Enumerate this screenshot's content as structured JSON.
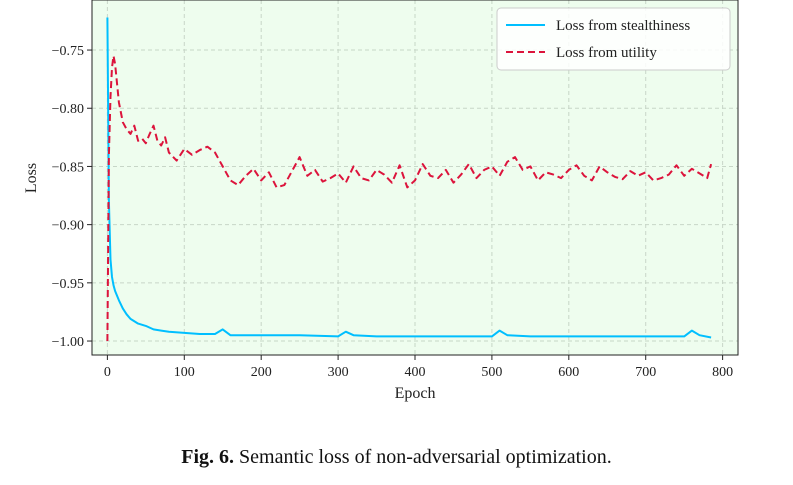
{
  "caption": {
    "label": "Fig. 6.",
    "text": "Semantic loss of non-adversarial optimization."
  },
  "colors": {
    "plot_bg": "#eefdee",
    "stealthiness": "#00bfff",
    "utility": "#dc143c",
    "grid": "#c7d6c7"
  },
  "chart_data": {
    "type": "line",
    "title": "",
    "xlabel": "Epoch",
    "ylabel": "Loss",
    "xlim": [
      -20,
      820
    ],
    "ylim": [
      -1.012,
      -0.707
    ],
    "xticks": [
      0,
      100,
      200,
      300,
      400,
      500,
      600,
      700,
      800
    ],
    "yticks": [
      -1.0,
      -0.95,
      -0.9,
      -0.85,
      -0.8,
      -0.75
    ],
    "ytick_labels": [
      "−1.00",
      "−0.95",
      "−0.90",
      "−0.85",
      "−0.80",
      "−0.75"
    ],
    "grid": true,
    "legend_position": "top-right",
    "series": [
      {
        "name": "Loss from stealthiness",
        "style": "solid",
        "x": [
          0,
          2,
          4,
          6,
          8,
          10,
          15,
          20,
          25,
          30,
          40,
          50,
          60,
          70,
          80,
          100,
          120,
          140,
          150,
          160,
          200,
          250,
          300,
          310,
          320,
          350,
          400,
          450,
          500,
          510,
          520,
          550,
          600,
          650,
          700,
          750,
          760,
          770,
          785
        ],
        "y": [
          -0.722,
          -0.88,
          -0.93,
          -0.945,
          -0.952,
          -0.957,
          -0.965,
          -0.972,
          -0.977,
          -0.981,
          -0.985,
          -0.987,
          -0.99,
          -0.991,
          -0.992,
          -0.993,
          -0.994,
          -0.994,
          -0.99,
          -0.995,
          -0.995,
          -0.995,
          -0.996,
          -0.992,
          -0.995,
          -0.996,
          -0.996,
          -0.996,
          -0.996,
          -0.991,
          -0.995,
          -0.996,
          -0.996,
          -0.996,
          -0.996,
          -0.996,
          -0.991,
          -0.995,
          -0.997
        ]
      },
      {
        "name": "Loss from utility",
        "style": "dashed",
        "x": [
          0,
          2,
          4,
          6,
          8,
          10,
          15,
          20,
          25,
          30,
          35,
          40,
          45,
          50,
          55,
          60,
          65,
          70,
          75,
          80,
          90,
          100,
          110,
          120,
          130,
          140,
          150,
          160,
          170,
          180,
          190,
          200,
          210,
          220,
          230,
          240,
          250,
          260,
          270,
          280,
          290,
          300,
          310,
          320,
          330,
          340,
          350,
          360,
          370,
          380,
          390,
          400,
          410,
          420,
          430,
          440,
          450,
          460,
          470,
          480,
          490,
          500,
          510,
          520,
          530,
          540,
          550,
          560,
          570,
          580,
          590,
          600,
          610,
          620,
          630,
          640,
          650,
          660,
          670,
          680,
          690,
          700,
          710,
          720,
          730,
          740,
          750,
          760,
          770,
          780,
          785
        ],
        "y": [
          -1.0,
          -0.84,
          -0.79,
          -0.765,
          -0.755,
          -0.762,
          -0.795,
          -0.812,
          -0.818,
          -0.822,
          -0.815,
          -0.828,
          -0.826,
          -0.83,
          -0.822,
          -0.815,
          -0.828,
          -0.832,
          -0.825,
          -0.838,
          -0.845,
          -0.835,
          -0.84,
          -0.836,
          -0.833,
          -0.838,
          -0.85,
          -0.862,
          -0.866,
          -0.858,
          -0.852,
          -0.862,
          -0.855,
          -0.868,
          -0.866,
          -0.854,
          -0.842,
          -0.858,
          -0.853,
          -0.863,
          -0.86,
          -0.856,
          -0.864,
          -0.85,
          -0.86,
          -0.862,
          -0.853,
          -0.857,
          -0.864,
          -0.849,
          -0.868,
          -0.862,
          -0.848,
          -0.858,
          -0.86,
          -0.853,
          -0.864,
          -0.857,
          -0.848,
          -0.86,
          -0.853,
          -0.85,
          -0.858,
          -0.846,
          -0.842,
          -0.853,
          -0.85,
          -0.862,
          -0.855,
          -0.857,
          -0.86,
          -0.853,
          -0.849,
          -0.858,
          -0.862,
          -0.85,
          -0.855,
          -0.859,
          -0.861,
          -0.854,
          -0.858,
          -0.855,
          -0.862,
          -0.86,
          -0.857,
          -0.849,
          -0.858,
          -0.852,
          -0.856,
          -0.86,
          -0.848
        ]
      }
    ]
  }
}
